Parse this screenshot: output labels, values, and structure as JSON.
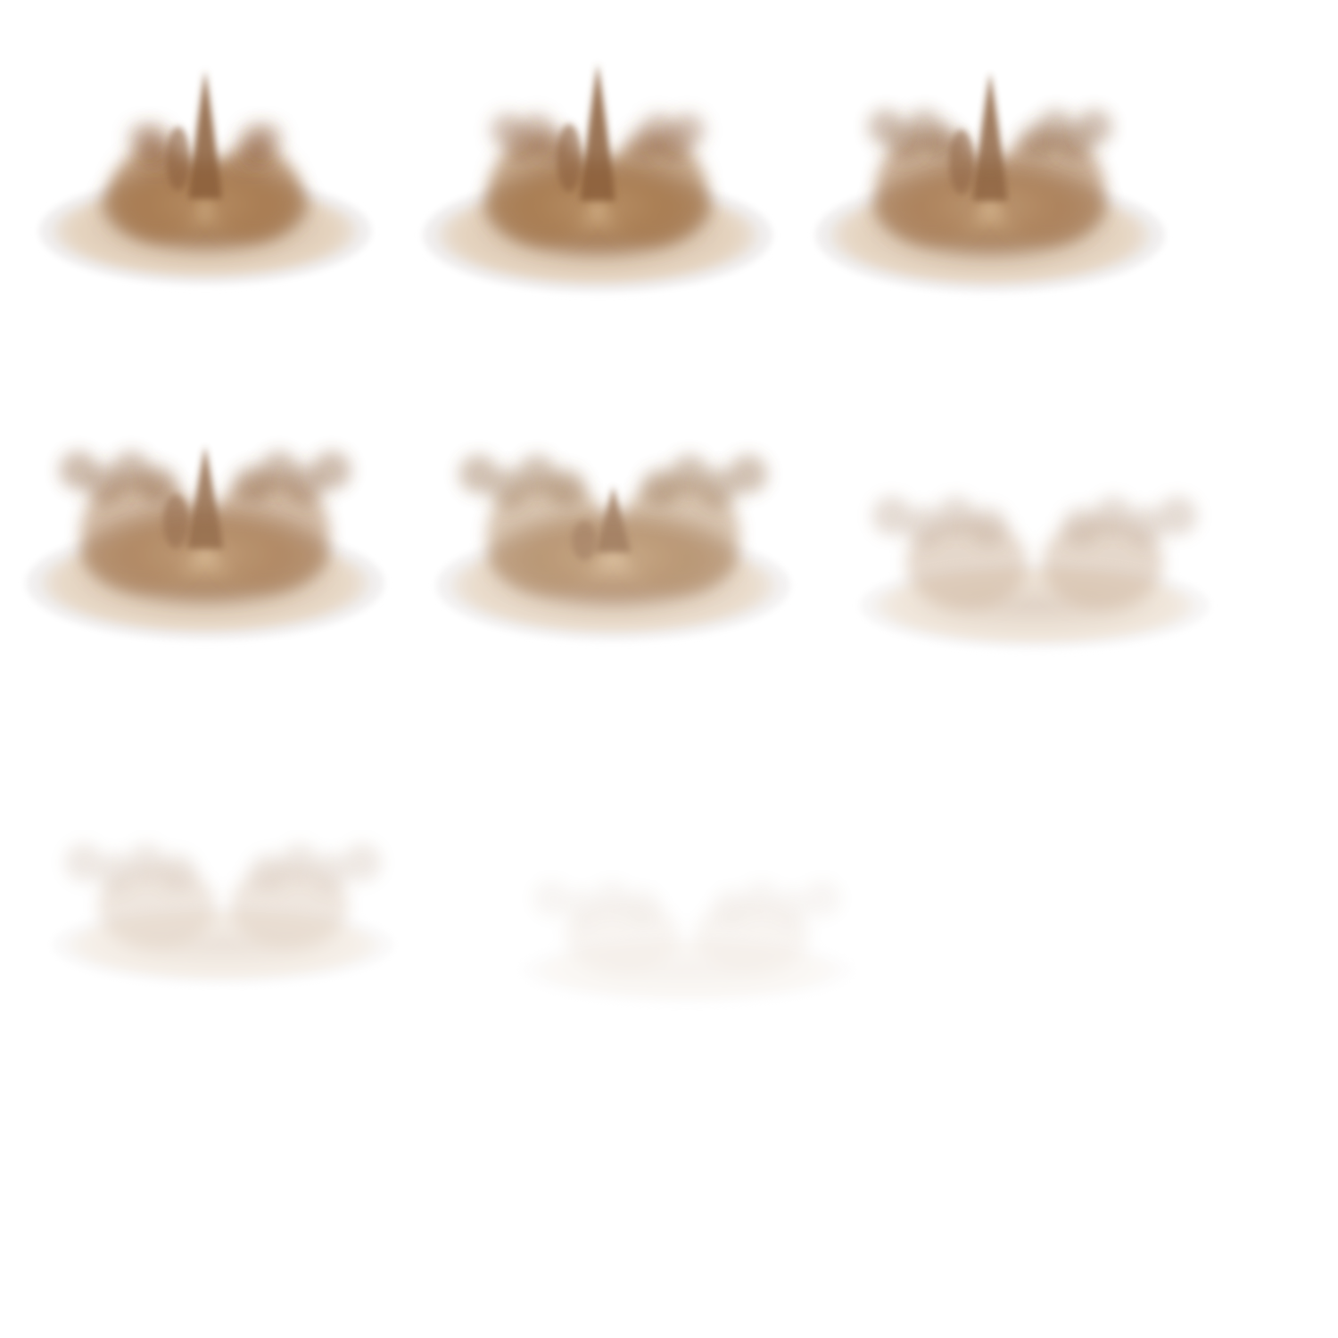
{
  "sheet": {
    "background": "#ffffff",
    "dust_color": "#a87c52",
    "dust_light": "#d9b88f",
    "dust_dark": "#8a5e3b",
    "halo_color": "#f0eeee"
  },
  "frames": [
    {
      "index": 1,
      "description_icon": "dust-burst-frame-icon",
      "opacity": 1.0,
      "plume": 1.0,
      "spread": 0.2
    },
    {
      "index": 2,
      "description_icon": "dust-burst-frame-icon",
      "opacity": 1.0,
      "plume": 1.0,
      "spread": 0.45
    },
    {
      "index": 3,
      "description_icon": "dust-burst-frame-icon",
      "opacity": 0.95,
      "plume": 0.95,
      "spread": 0.6
    },
    {
      "index": 4,
      "description_icon": "dust-burst-frame-icon",
      "opacity": 0.9,
      "plume": 0.8,
      "spread": 0.8
    },
    {
      "index": 5,
      "description_icon": "dust-burst-frame-icon",
      "opacity": 0.8,
      "plume": 0.6,
      "spread": 0.9
    },
    {
      "index": 6,
      "description_icon": "dust-burst-frame-icon",
      "opacity": 0.55,
      "plume": 0.0,
      "spread": 1.0
    },
    {
      "index": 7,
      "description_icon": "dust-burst-frame-icon",
      "opacity": 0.35,
      "plume": 0.0,
      "spread": 1.0
    },
    {
      "index": 8,
      "description_icon": "dust-burst-frame-icon",
      "opacity": 0.15,
      "plume": 0.0,
      "spread": 1.0
    }
  ]
}
